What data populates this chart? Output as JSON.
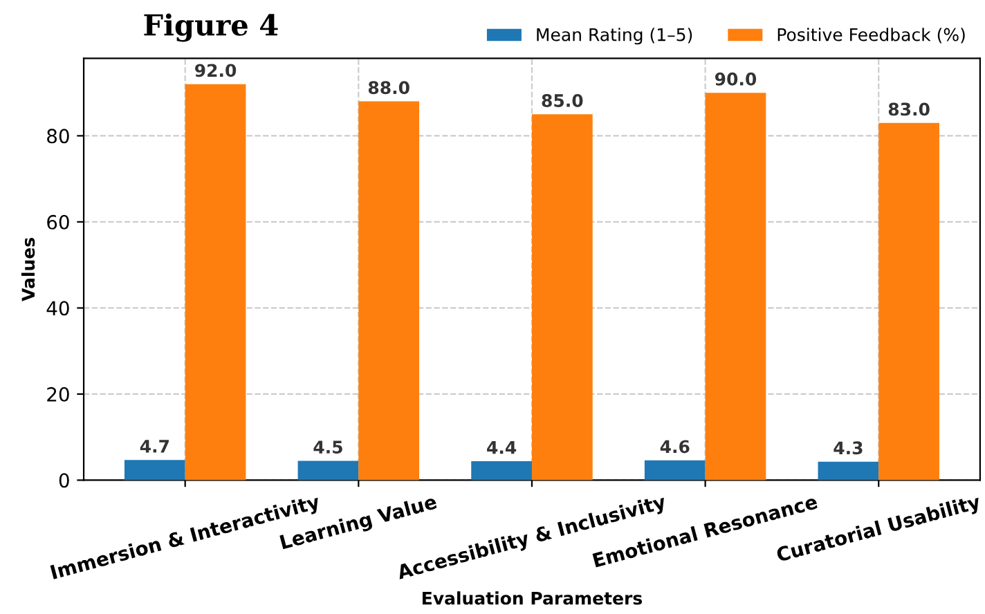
{
  "chart_data": {
    "type": "bar",
    "title": "Figure 4",
    "xlabel": "Evaluation Parameters",
    "ylabel": "Values",
    "categories": [
      "Immersion & Interactivity",
      "Learning Value",
      "Accessibility & Inclusivity",
      "Emotional Resonance",
      "Curatorial Usability"
    ],
    "series": [
      {
        "name": "Mean Rating (1–5)",
        "color": "#1f77b4",
        "values": [
          4.7,
          4.5,
          4.4,
          4.6,
          4.3
        ],
        "value_labels": [
          "4.7",
          "4.5",
          "4.4",
          "4.6",
          "4.3"
        ]
      },
      {
        "name": "Positive Feedback (%)",
        "color": "#ff7f0e",
        "values": [
          92.0,
          88.0,
          85.0,
          90.0,
          83.0
        ],
        "value_labels": [
          "92.0",
          "88.0",
          "85.0",
          "90.0",
          "83.0"
        ]
      }
    ],
    "ylim": [
      0,
      98
    ],
    "yticks": [
      0,
      20,
      40,
      60,
      80
    ],
    "grid": true,
    "legend": "top right"
  }
}
